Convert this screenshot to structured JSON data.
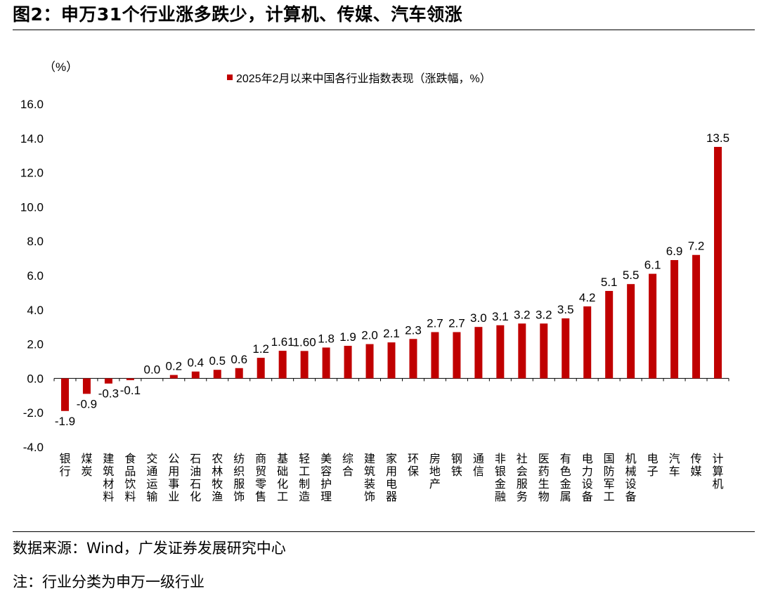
{
  "header": {
    "title": "图2：申万31个行业涨多跌少，计算机、传媒、汽车领涨"
  },
  "footer": {
    "source": "数据来源：Wind，广发证券发展研究中心",
    "note": "注：行业分类为申万一级行业"
  },
  "colors": {
    "bar": "#c00000",
    "axis": "#000000",
    "text": "#000000"
  },
  "chart_data": {
    "type": "bar",
    "title": "",
    "ylabel": "（%）",
    "xlabel": "",
    "legend": {
      "label": "2025年2月以来中国各行业指数表现（涨跌幅，%）",
      "placement": "top-center"
    },
    "grid": false,
    "ylim": [
      -4,
      16
    ],
    "yticks": [
      "-4.0",
      "-2.0",
      "0.0",
      "2.0",
      "4.0",
      "6.0",
      "8.0",
      "10.0",
      "12.0",
      "14.0",
      "16.0"
    ],
    "categories": [
      "银行",
      "煤炭",
      "建筑材料",
      "食品饮料",
      "交通运输",
      "公用事业",
      "石油石化",
      "农林牧渔",
      "纺织服饰",
      "商贸零售",
      "基础化工",
      "轻工制造",
      "美容护理",
      "综合",
      "建筑装饰",
      "家用电器",
      "环保",
      "房地产",
      "钢铁",
      "通信",
      "非银金融",
      "社会服务",
      "医药生物",
      "有色金属",
      "电力设备",
      "国防军工",
      "机械设备",
      "电子",
      "汽车",
      "传媒",
      "计算机"
    ],
    "values": [
      -1.9,
      -0.9,
      -0.3,
      -0.1,
      0.0,
      0.2,
      0.4,
      0.5,
      0.6,
      1.2,
      1.61,
      1.6,
      1.8,
      1.9,
      2.0,
      2.1,
      2.3,
      2.7,
      2.7,
      3.0,
      3.1,
      3.2,
      3.2,
      3.5,
      4.2,
      5.1,
      5.5,
      6.1,
      6.9,
      7.2,
      13.5
    ],
    "labels": [
      "-1.9",
      "-0.9",
      "-0.3",
      "-0.1",
      "0.0",
      "0.2",
      "0.4",
      "0.5",
      "0.6",
      "1.2",
      "1.61",
      "1.60",
      "1.8",
      "1.9",
      "2.0",
      "2.1",
      "2.3",
      "2.7",
      "2.7",
      "3.0",
      "3.1",
      "3.2",
      "3.2",
      "3.5",
      "4.2",
      "5.1",
      "5.5",
      "6.1",
      "6.9",
      "7.2",
      "13.5"
    ]
  }
}
